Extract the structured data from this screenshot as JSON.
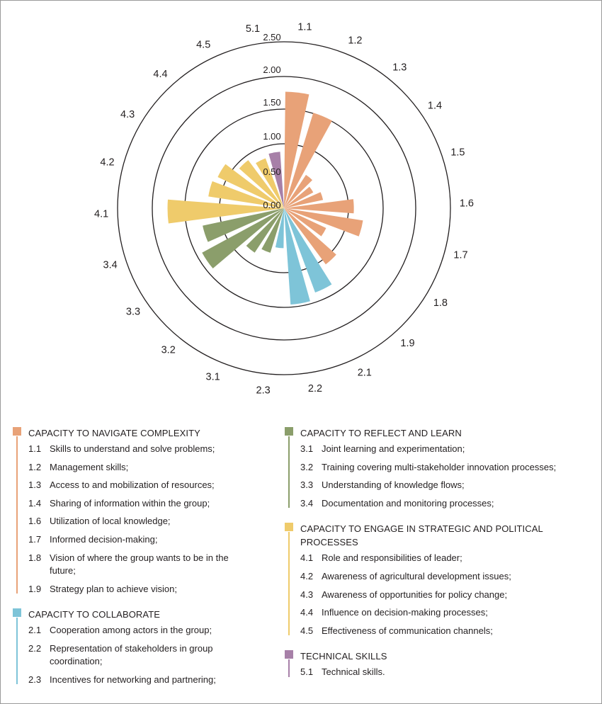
{
  "chart_data": {
    "type": "polar-bar",
    "rlim": [
      0,
      2.5
    ],
    "radial_ticks": [
      "0.00",
      "0.50",
      "1.00",
      "1.50",
      "2.00",
      "2.50"
    ],
    "radial_tick_values": [
      0,
      0.5,
      1.0,
      1.5,
      2.0,
      2.5
    ],
    "grid": true,
    "categories": [
      "1.1",
      "1.2",
      "1.3",
      "1.4",
      "1.5",
      "1.6",
      "1.7",
      "1.8",
      "1.9",
      "2.1",
      "2.2",
      "2.3",
      "3.1",
      "3.2",
      "3.3",
      "3.4",
      "4.1",
      "4.2",
      "4.3",
      "4.4",
      "4.5",
      "5.1"
    ],
    "values": [
      1.75,
      1.5,
      0.6,
      0.5,
      0.6,
      1.05,
      1.2,
      0.7,
      1.05,
      1.35,
      1.45,
      0.6,
      0.7,
      0.8,
      1.4,
      1.25,
      1.75,
      1.15,
      1.1,
      0.9,
      0.8,
      0.85
    ],
    "groups": [
      "navigate",
      "navigate",
      "navigate",
      "navigate",
      "navigate",
      "navigate",
      "navigate",
      "navigate",
      "navigate",
      "collaborate",
      "collaborate",
      "collaborate",
      "reflect",
      "reflect",
      "reflect",
      "reflect",
      "engage",
      "engage",
      "engage",
      "engage",
      "engage",
      "technical"
    ]
  },
  "colors": {
    "navigate": "#e8a278",
    "collaborate": "#7ec4d8",
    "reflect": "#8b9e6b",
    "engage": "#efcb6b",
    "technical": "#a780a8",
    "grid": "#231f20"
  },
  "legend": {
    "left": [
      {
        "key": "navigate",
        "title": "CAPACITY TO NAVIGATE COMPLEXITY",
        "items": [
          {
            "num": "1.1",
            "text": "Skills to understand and solve problems;"
          },
          {
            "num": "1.2",
            "text": "Management skills;"
          },
          {
            "num": "1.3",
            "text": "Access to and mobilization of resources;"
          },
          {
            "num": "1.4",
            "text": "Sharing of information within the group;"
          },
          {
            "num": "1.6",
            "text": "Utilization of local knowledge;"
          },
          {
            "num": "1.7",
            "text": "Informed decision-making;"
          },
          {
            "num": "1.8",
            "text": "Vision of where the group wants to be in the future;"
          },
          {
            "num": "1.9",
            "text": "Strategy plan to achieve vision;"
          }
        ]
      },
      {
        "key": "collaborate",
        "title": "CAPACITY TO COLLABORATE",
        "items": [
          {
            "num": "2.1",
            "text": "Cooperation among actors in the group;"
          },
          {
            "num": "2.2",
            "text": "Representation of stakeholders in group coordination;"
          },
          {
            "num": "2.3",
            "text": "Incentives for networking and partnering;"
          }
        ]
      }
    ],
    "right": [
      {
        "key": "reflect",
        "title": "CAPACITY TO REFLECT AND LEARN",
        "items": [
          {
            "num": "3.1",
            "text": "Joint learning and experimentation;"
          },
          {
            "num": "3.2",
            "text": "Training covering multi-stakeholder innovation processes;"
          },
          {
            "num": "3.3",
            "text": "Understanding of knowledge flows;"
          },
          {
            "num": "3.4",
            "text": "Documentation and monitoring processes;"
          }
        ]
      },
      {
        "key": "engage",
        "title": "CAPACITY TO ENGAGE IN STRATEGIC AND POLITICAL PROCESSES",
        "items": [
          {
            "num": "4.1",
            "text": "Role and responsibilities of leader;"
          },
          {
            "num": "4.2",
            "text": "Awareness of agricultural development issues;"
          },
          {
            "num": "4.3",
            "text": "Awareness of opportunities for policy change;"
          },
          {
            "num": "4.4",
            "text": "Influence on decision-making processes;"
          },
          {
            "num": "4.5",
            "text": "Effectiveness of communication channels;"
          }
        ]
      },
      {
        "key": "technical",
        "title": "TECHNICAL SKILLS",
        "items": [
          {
            "num": "5.1",
            "text": "Technical skills."
          }
        ]
      }
    ]
  }
}
